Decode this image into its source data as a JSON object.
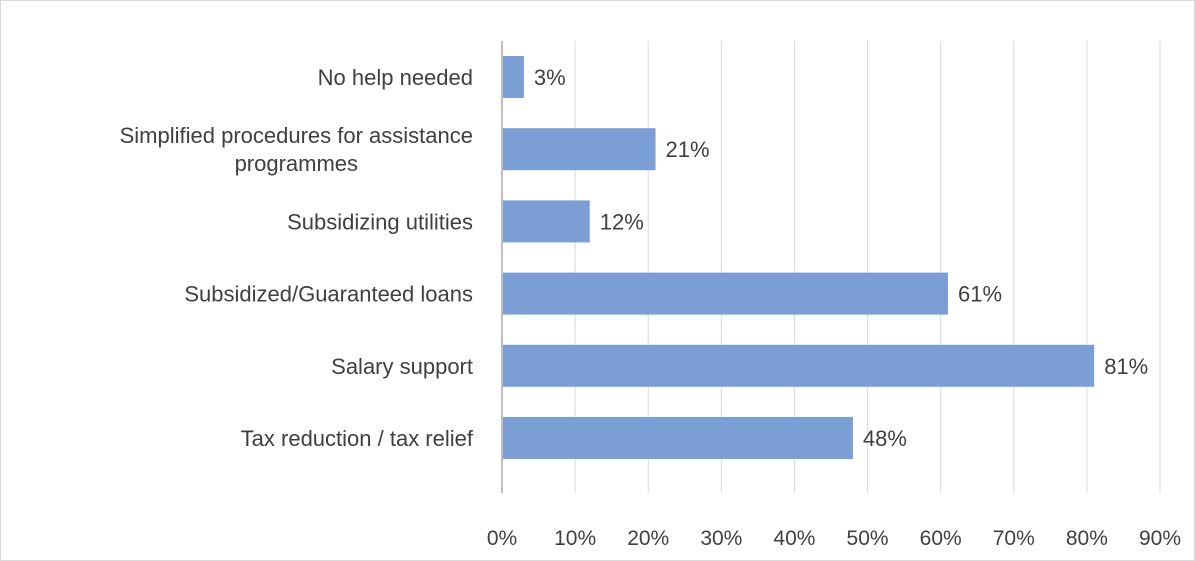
{
  "chart_data": {
    "type": "bar",
    "orientation": "horizontal",
    "categories": [
      [
        "No help needed"
      ],
      [
        "Simplified procedures for assistance",
        "programmes"
      ],
      [
        "Subsidizing utilities"
      ],
      [
        "Subsidized/Guaranteed loans"
      ],
      [
        "Salary support"
      ],
      [
        "Tax reduction / tax relief"
      ]
    ],
    "values": [
      3,
      21,
      12,
      61,
      81,
      48
    ],
    "value_labels": [
      "3%",
      "21%",
      "12%",
      "61%",
      "81%",
      "48%"
    ],
    "xlim": [
      0,
      90
    ],
    "xticks": [
      0,
      10,
      20,
      30,
      40,
      50,
      60,
      70,
      80,
      90
    ],
    "xtick_labels": [
      "0%",
      "10%",
      "20%",
      "30%",
      "40%",
      "50%",
      "60%",
      "70%",
      "80%",
      "90%"
    ],
    "grid": true,
    "legend": "none",
    "colors": {
      "bar": "#7b9fd4",
      "grid": "#d9d9d9",
      "axis": "#bfbfbf",
      "text": "#404040"
    }
  }
}
